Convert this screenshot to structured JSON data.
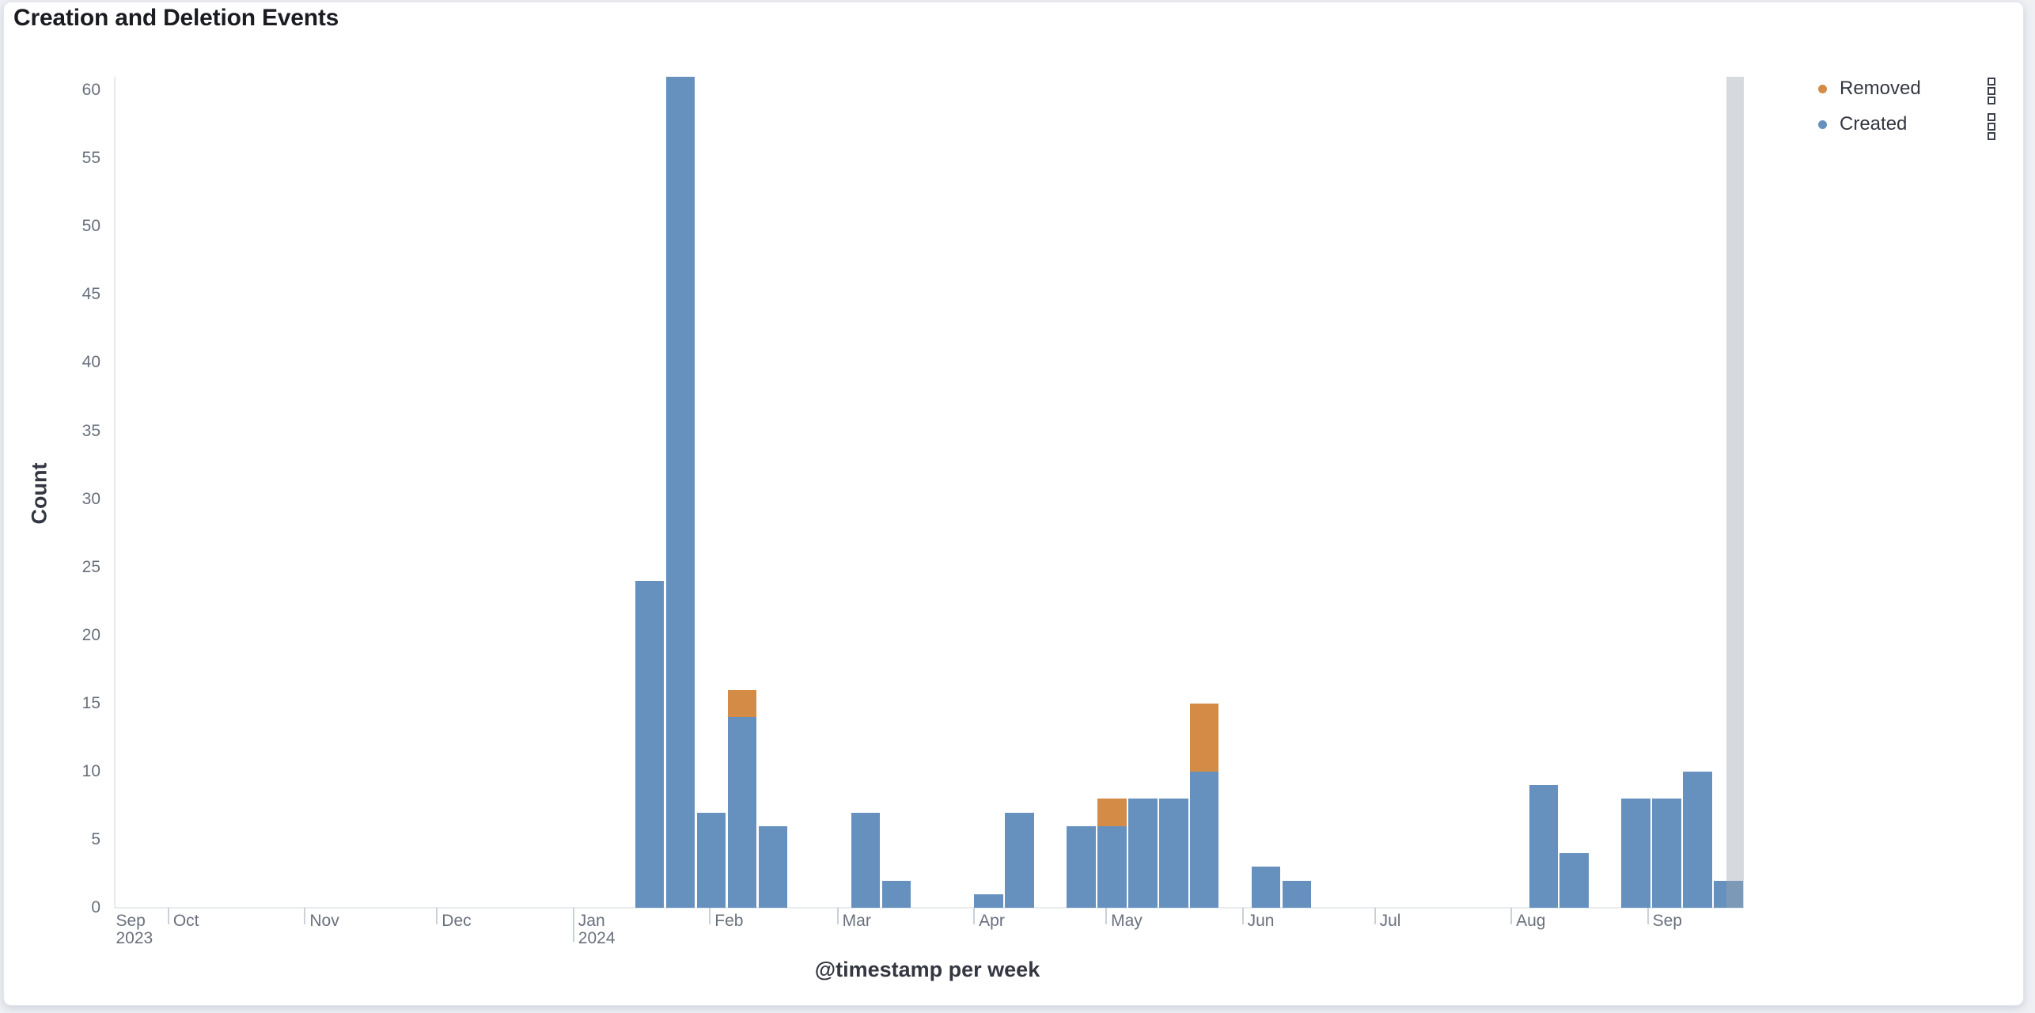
{
  "panel": {
    "title": "Creation and Deletion Events"
  },
  "legend": {
    "items": [
      {
        "label": "Removed",
        "color": "#d38b45"
      },
      {
        "label": "Created",
        "color": "#6691bf"
      }
    ]
  },
  "chart_data": {
    "type": "bar",
    "stacked": true,
    "time_bucket": "week",
    "title": "Creation and Deletion Events",
    "xlabel": "@timestamp per week",
    "ylabel": "Count",
    "ylim": [
      0,
      61
    ],
    "y_ticks": [
      0,
      5,
      10,
      15,
      20,
      25,
      30,
      35,
      40,
      45,
      50,
      55,
      60
    ],
    "x_domain": [
      "2023-09-18",
      "2024-09-23"
    ],
    "grid": false,
    "legend_position": "right",
    "x_ticks": [
      {
        "date": "2023-09-18",
        "label": "Sep",
        "sublabel": "2023",
        "tick": false
      },
      {
        "date": "2023-10-01",
        "label": "Oct",
        "tick": true
      },
      {
        "date": "2023-11-01",
        "label": "Nov",
        "tick": true
      },
      {
        "date": "2023-12-01",
        "label": "Dec",
        "tick": true
      },
      {
        "date": "2024-01-01",
        "label": "Jan",
        "sublabel": "2024",
        "tick": true,
        "year_tick": true
      },
      {
        "date": "2024-02-01",
        "label": "Feb",
        "tick": true
      },
      {
        "date": "2024-03-01",
        "label": "Mar",
        "tick": true
      },
      {
        "date": "2024-04-01",
        "label": "Apr",
        "tick": true
      },
      {
        "date": "2024-05-01",
        "label": "May",
        "tick": true
      },
      {
        "date": "2024-06-01",
        "label": "Jun",
        "tick": true
      },
      {
        "date": "2024-07-01",
        "label": "Jul",
        "tick": true
      },
      {
        "date": "2024-08-01",
        "label": "Aug",
        "tick": true
      },
      {
        "date": "2024-09-01",
        "label": "Sep",
        "tick": true
      }
    ],
    "series": [
      {
        "name": "Created",
        "color": "#6691bf"
      },
      {
        "name": "Removed",
        "color": "#d38b45"
      }
    ],
    "bars": [
      {
        "week": "2024-01-15",
        "Created": 24,
        "Removed": 0
      },
      {
        "week": "2024-01-22",
        "Created": 61,
        "Removed": 0
      },
      {
        "week": "2024-01-29",
        "Created": 7,
        "Removed": 0
      },
      {
        "week": "2024-02-05",
        "Created": 14,
        "Removed": 2
      },
      {
        "week": "2024-02-12",
        "Created": 6,
        "Removed": 0
      },
      {
        "week": "2024-03-04",
        "Created": 7,
        "Removed": 0
      },
      {
        "week": "2024-03-11",
        "Created": 2,
        "Removed": 0
      },
      {
        "week": "2024-04-01",
        "Created": 1,
        "Removed": 0
      },
      {
        "week": "2024-04-08",
        "Created": 7,
        "Removed": 0
      },
      {
        "week": "2024-04-22",
        "Created": 6,
        "Removed": 0
      },
      {
        "week": "2024-04-29",
        "Created": 6,
        "Removed": 2
      },
      {
        "week": "2024-05-06",
        "Created": 8,
        "Removed": 0
      },
      {
        "week": "2024-05-13",
        "Created": 8,
        "Removed": 0
      },
      {
        "week": "2024-05-20",
        "Created": 10,
        "Removed": 5
      },
      {
        "week": "2024-06-03",
        "Created": 3,
        "Removed": 0
      },
      {
        "week": "2024-06-10",
        "Created": 2,
        "Removed": 0
      },
      {
        "week": "2024-08-05",
        "Created": 9,
        "Removed": 0
      },
      {
        "week": "2024-08-12",
        "Created": 4,
        "Removed": 0
      },
      {
        "week": "2024-08-26",
        "Created": 8,
        "Removed": 0
      },
      {
        "week": "2024-09-02",
        "Created": 8,
        "Removed": 0
      },
      {
        "week": "2024-09-09",
        "Created": 10,
        "Removed": 0
      },
      {
        "week": "2024-09-16",
        "Created": 2,
        "Removed": 0
      }
    ],
    "partial_bucket_marker": {
      "from": "2024-09-19",
      "to": "2024-09-23",
      "color": "rgba(158,165,175,0.42)"
    }
  }
}
